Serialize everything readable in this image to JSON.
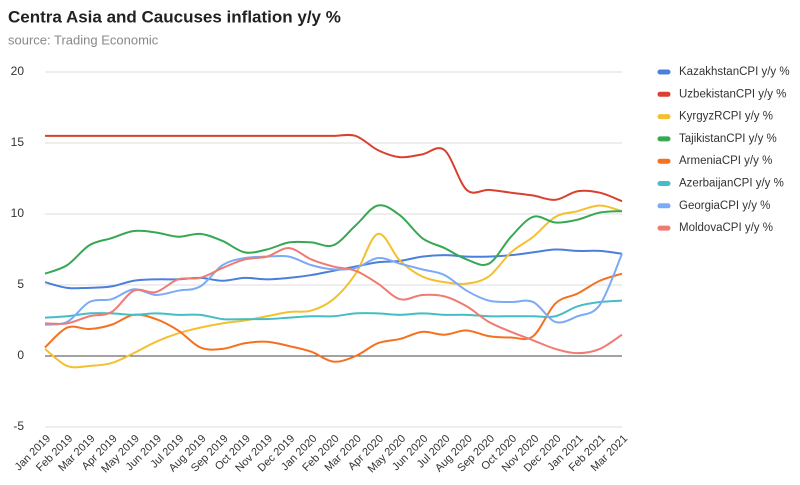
{
  "chart_data": {
    "type": "line",
    "title": "Centra Asia and Caucuses inflation y/y %",
    "subtitle": "source: Trading Economic",
    "categories": [
      "Jan 2019",
      "Feb 2019",
      "Mar 2019",
      "Apr 2019",
      "May 2019",
      "Jun 2019",
      "Jul 2019",
      "Aug 2019",
      "Sep 2019",
      "Oct 2019",
      "Nov 2019",
      "Dec 2019",
      "Jan 2020",
      "Feb 2020",
      "Mar 2020",
      "Apr 2020",
      "May 2020",
      "Jun 2020",
      "Jul 2020",
      "Aug 2020",
      "Sep 2020",
      "Oct 2020",
      "Nov 2020",
      "Dec 2020",
      "Jan 2021",
      "Feb 2021",
      "Mar 2021"
    ],
    "ylim": [
      -5,
      20
    ],
    "yticks": [
      -5,
      0,
      5,
      10,
      15,
      20
    ],
    "grid": true,
    "legend": "right",
    "smooth": true,
    "series": [
      {
        "name": "KazakhstanCPI y/y %",
        "color": "#4a7fdc",
        "values": [
          5.2,
          4.8,
          4.8,
          4.9,
          5.3,
          5.4,
          5.4,
          5.5,
          5.3,
          5.5,
          5.4,
          5.5,
          5.7,
          6.0,
          6.3,
          6.6,
          6.7,
          7.0,
          7.1,
          7.0,
          7.0,
          7.1,
          7.3,
          7.5,
          7.4,
          7.4,
          7.2
        ]
      },
      {
        "name": "UzbekistanCPI y/y %",
        "color": "#d9402f",
        "values": [
          15.5,
          15.5,
          15.5,
          15.5,
          15.5,
          15.5,
          15.5,
          15.5,
          15.5,
          15.5,
          15.5,
          15.5,
          15.5,
          15.5,
          15.5,
          14.5,
          14.0,
          14.2,
          14.5,
          11.7,
          11.7,
          11.5,
          11.3,
          11.0,
          11.6,
          11.5,
          10.9
        ]
      },
      {
        "name": "KyrgyzRCPI y/y %",
        "color": "#f4c030",
        "values": [
          0.5,
          -0.7,
          -0.7,
          -0.5,
          0.2,
          1.0,
          1.6,
          2.0,
          2.3,
          2.5,
          2.8,
          3.1,
          3.2,
          4.0,
          5.8,
          8.6,
          6.7,
          5.6,
          5.2,
          5.1,
          5.6,
          7.3,
          8.4,
          9.8,
          10.2,
          10.6,
          10.2
        ]
      },
      {
        "name": "TajikistanCPI y/y %",
        "color": "#36a852",
        "values": [
          5.8,
          6.4,
          7.8,
          8.3,
          8.8,
          8.7,
          8.4,
          8.6,
          8.1,
          7.3,
          7.5,
          8.0,
          8.0,
          7.8,
          9.2,
          10.6,
          9.9,
          8.3,
          7.6,
          6.8,
          6.5,
          8.4,
          9.8,
          9.4,
          9.6,
          10.1,
          10.2
        ]
      },
      {
        "name": "ArmeniaCPI y/y %",
        "color": "#f57120",
        "values": [
          0.6,
          2.0,
          1.9,
          2.2,
          2.9,
          2.6,
          1.8,
          0.6,
          0.5,
          0.9,
          1.0,
          0.7,
          0.3,
          -0.4,
          0.0,
          0.9,
          1.2,
          1.7,
          1.5,
          1.8,
          1.4,
          1.3,
          1.4,
          3.7,
          4.4,
          5.3,
          5.8
        ]
      },
      {
        "name": "AzerbaijanCPI y/y %",
        "color": "#46bdc6",
        "values": [
          2.7,
          2.8,
          3.0,
          3.0,
          2.9,
          3.0,
          2.9,
          2.9,
          2.6,
          2.6,
          2.6,
          2.7,
          2.8,
          2.8,
          3.0,
          3.0,
          2.9,
          3.0,
          2.9,
          2.9,
          2.8,
          2.8,
          2.8,
          2.8,
          3.5,
          3.8,
          3.9
        ]
      },
      {
        "name": "GeorgiaCPI y/y %",
        "color": "#7baaf7",
        "values": [
          2.2,
          2.4,
          3.8,
          4.0,
          4.7,
          4.3,
          4.6,
          4.9,
          6.4,
          6.9,
          7.0,
          7.0,
          6.4,
          6.1,
          6.2,
          6.9,
          6.5,
          6.1,
          5.7,
          4.6,
          3.9,
          3.8,
          3.8,
          2.4,
          2.8,
          3.6,
          7.2
        ]
      },
      {
        "name": "MoldovaCPI y/y %",
        "color": "#f07b72",
        "values": [
          2.3,
          2.3,
          2.8,
          3.1,
          4.6,
          4.5,
          5.4,
          5.5,
          6.2,
          6.8,
          7.0,
          7.6,
          6.8,
          6.3,
          6.0,
          5.1,
          4.0,
          4.3,
          4.2,
          3.5,
          2.4,
          1.7,
          1.1,
          0.5,
          0.2,
          0.5,
          1.5
        ]
      }
    ]
  }
}
